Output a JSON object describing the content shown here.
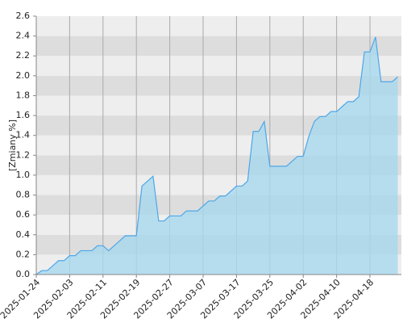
{
  "chart_data": {
    "type": "area",
    "y_label": "[Zmiany %]",
    "categories": [
      "2025-01-24",
      null,
      null,
      null,
      null,
      null,
      "2025-02-03",
      null,
      null,
      null,
      null,
      null,
      "2025-02-11",
      null,
      null,
      null,
      null,
      null,
      "2025-02-19",
      null,
      null,
      null,
      null,
      null,
      "2025-02-27",
      null,
      null,
      null,
      null,
      null,
      "2025-03-07",
      null,
      null,
      null,
      null,
      null,
      "2025-03-17",
      null,
      null,
      null,
      null,
      null,
      "2025-03-25",
      null,
      null,
      null,
      null,
      null,
      "2025-04-02",
      null,
      null,
      null,
      null,
      null,
      "2025-04-10",
      null,
      null,
      null,
      null,
      null,
      "2025-04-18",
      null,
      null,
      null,
      null,
      null
    ],
    "values": [
      0.0,
      0.04,
      0.04,
      0.09,
      0.14,
      0.14,
      0.19,
      0.19,
      0.24,
      0.24,
      0.24,
      0.29,
      0.29,
      0.24,
      0.29,
      0.34,
      0.39,
      0.39,
      0.39,
      0.89,
      0.94,
      0.99,
      0.54,
      0.54,
      0.59,
      0.59,
      0.59,
      0.64,
      0.64,
      0.64,
      0.69,
      0.74,
      0.74,
      0.79,
      0.79,
      0.84,
      0.89,
      0.89,
      0.94,
      1.44,
      1.44,
      1.54,
      1.09,
      1.09,
      1.09,
      1.09,
      1.14,
      1.19,
      1.19,
      1.39,
      1.54,
      1.59,
      1.59,
      1.64,
      1.64,
      1.69,
      1.74,
      1.74,
      1.79,
      2.24,
      2.24,
      2.39,
      1.94,
      1.94,
      1.94,
      1.99
    ],
    "color": "#4da6e8",
    "ylim": [
      0,
      2.6
    ],
    "yticks": [
      {
        "value": 0,
        "label": "0.0"
      },
      0.2,
      0.4,
      0.6,
      0.8,
      {
        "value": 1,
        "label": "1.0"
      },
      1.2,
      1.4,
      1.6,
      1.8,
      {
        "value": 2,
        "label": "2.0"
      },
      2.2,
      2.4,
      2.6
    ],
    "grid": true
  }
}
